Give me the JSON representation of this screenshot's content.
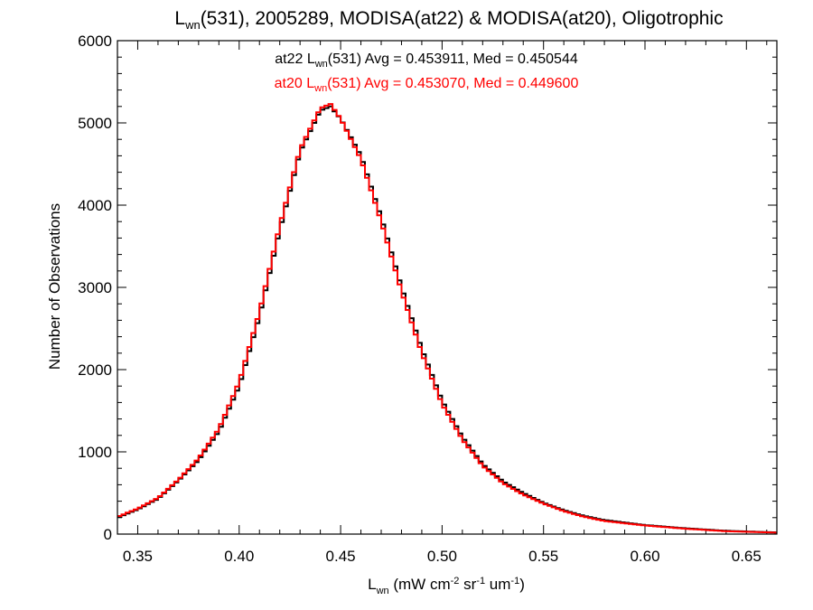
{
  "chart_data": {
    "type": "line",
    "step": true,
    "title": {
      "prefix": "L",
      "sub": "wn",
      "suffix": "(531), 2005289, MODISA(at22) & MODISA(at20), Oligotrophic"
    },
    "xlabel": {
      "main": "L",
      "sub": "wn",
      "units": [
        {
          "t": " (mW cm"
        },
        {
          "s": "-2"
        },
        {
          "t": " sr"
        },
        {
          "s": "-1"
        },
        {
          "t": " um"
        },
        {
          "s": "-1"
        },
        {
          "t": ")"
        }
      ]
    },
    "ylabel": "Number of Observations",
    "xlim": [
      0.34,
      0.665
    ],
    "ylim": [
      0,
      6000
    ],
    "xticks": [
      0.35,
      0.4,
      0.45,
      0.5,
      0.55,
      0.6,
      0.65
    ],
    "xtick_labels": [
      "0.35",
      "0.40",
      "0.45",
      "0.50",
      "0.55",
      "0.60",
      "0.65"
    ],
    "yticks": [
      0,
      1000,
      2000,
      3000,
      4000,
      5000,
      6000
    ],
    "ytick_labels": [
      "0",
      "1000",
      "2000",
      "3000",
      "4000",
      "5000",
      "6000"
    ],
    "grid": false,
    "legend_position": "top-center",
    "annotations": [
      {
        "pre": "at22 L",
        "sub": "wn",
        "post": "(531) Avg = 0.453911, Med = 0.450544",
        "color": "#000000"
      },
      {
        "pre": "at20 L",
        "sub": "wn",
        "post": "(531) Avg = 0.453070, Med = 0.449600",
        "color": "#ff0000"
      }
    ],
    "series": [
      {
        "color": "#000000",
        "x": [
          0.34,
          0.35,
          0.36,
          0.37,
          0.38,
          0.39,
          0.4,
          0.41,
          0.42,
          0.43,
          0.44,
          0.445,
          0.45,
          0.46,
          0.47,
          0.48,
          0.49,
          0.5,
          0.51,
          0.52,
          0.53,
          0.54,
          0.55,
          0.56,
          0.57,
          0.58,
          0.6,
          0.62,
          0.64,
          0.665
        ],
        "y": [
          200,
          300,
          430,
          650,
          900,
          1250,
          1800,
          2650,
          3700,
          4650,
          5150,
          5200,
          5050,
          4600,
          3850,
          3000,
          2250,
          1620,
          1180,
          850,
          640,
          500,
          380,
          290,
          220,
          170,
          110,
          70,
          40,
          20
        ]
      },
      {
        "color": "#ff0000",
        "x": [
          0.34,
          0.35,
          0.36,
          0.37,
          0.38,
          0.39,
          0.4,
          0.41,
          0.42,
          0.43,
          0.44,
          0.445,
          0.45,
          0.46,
          0.47,
          0.48,
          0.49,
          0.5,
          0.51,
          0.52,
          0.53,
          0.54,
          0.55,
          0.56,
          0.57,
          0.58,
          0.6,
          0.62,
          0.64,
          0.665
        ],
        "y": [
          210,
          310,
          440,
          660,
          920,
          1280,
          1850,
          2700,
          3750,
          4680,
          5180,
          5230,
          5050,
          4560,
          3800,
          2950,
          2200,
          1580,
          1150,
          830,
          620,
          480,
          370,
          280,
          210,
          160,
          105,
          65,
          35,
          18
        ]
      }
    ]
  }
}
